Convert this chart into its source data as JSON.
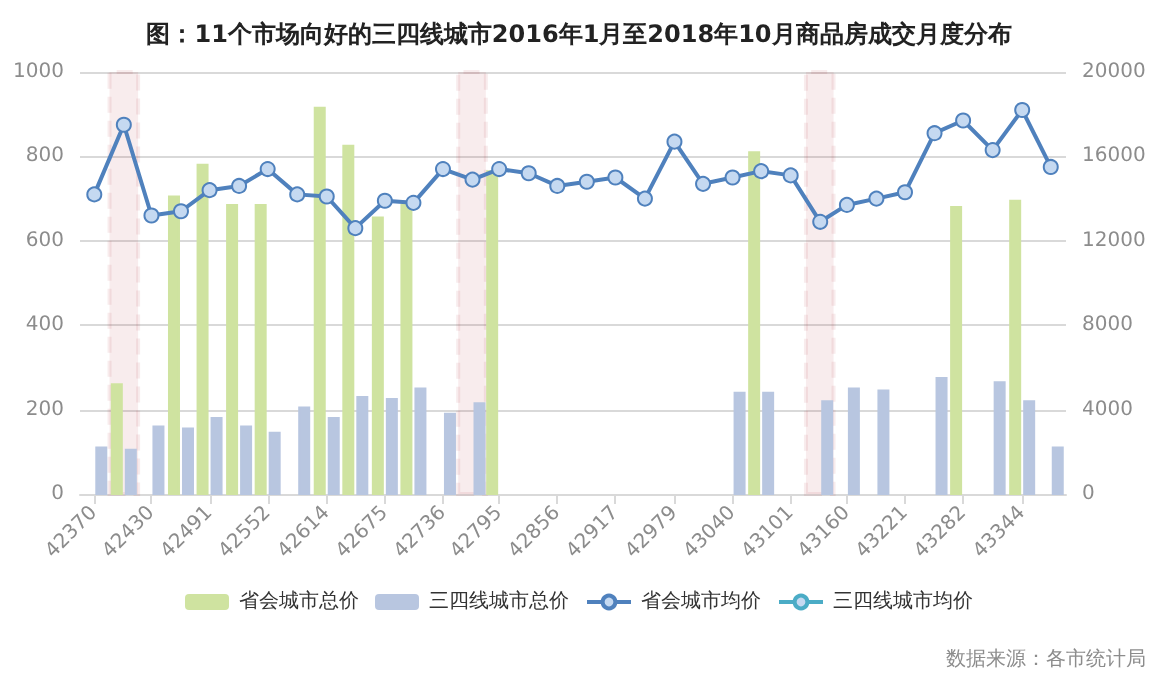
{
  "chart_data": {
    "type": "bar",
    "title": "图：11个市场向好的三四线城市2016年1月至2018年10月商品房成交月度分布",
    "x": [
      42370,
      42401,
      42430,
      42461,
      42491,
      42522,
      42552,
      42583,
      42614,
      42644,
      42675,
      42705,
      42736,
      42767,
      42795,
      42826,
      42856,
      42887,
      42917,
      42948,
      42979,
      43009,
      43040,
      43070,
      43101,
      43132,
      43160,
      43191,
      43221,
      43252,
      43282,
      43313,
      43344,
      43374
    ],
    "xlim": [
      42355,
      43390
    ],
    "xticks": [
      42370,
      42430,
      42491,
      42552,
      42614,
      42675,
      42736,
      42795,
      42856,
      42917,
      42979,
      43040,
      43101,
      43160,
      43221,
      43282,
      43344
    ],
    "ylim": [
      0,
      1000
    ],
    "yticks": [
      0,
      200,
      400,
      600,
      800,
      1000
    ],
    "y2lim": [
      0,
      20000
    ],
    "y2ticks": [
      0,
      4000,
      8000,
      12000,
      16000,
      20000
    ],
    "series": [
      {
        "name": "省会城市总价",
        "color": "#cfe3a0",
        "values": [
          null,
          260,
          null,
          705,
          780,
          685,
          685,
          null,
          915,
          825,
          655,
          685,
          null,
          null,
          765,
          null,
          null,
          null,
          null,
          null,
          null,
          null,
          null,
          810,
          null,
          null,
          null,
          null,
          null,
          null,
          680,
          null,
          695,
          null
        ]
      },
      {
        "name": "三四线城市总价",
        "color": "#b8c6e0",
        "values": [
          110,
          105,
          160,
          155,
          180,
          160,
          145,
          205,
          180,
          230,
          225,
          250,
          190,
          215,
          null,
          null,
          null,
          null,
          null,
          null,
          null,
          null,
          240,
          240,
          null,
          220,
          250,
          245,
          null,
          275,
          null,
          265,
          220,
          110
        ]
      },
      {
        "name": "省会城市均价",
        "type": "line",
        "axis": "y2",
        "color": "#4f81bd",
        "values": [
          14200,
          17500,
          13200,
          13400,
          14400,
          14600,
          15400,
          14200,
          14100,
          12600,
          13900,
          13800,
          15400,
          14900,
          15400,
          15200,
          14600,
          14800,
          15000,
          14000,
          16700,
          14700,
          15000,
          15300,
          15100,
          12900,
          13700,
          14000,
          14300,
          17100,
          17700,
          16300,
          18200,
          15500
        ]
      },
      {
        "name": "三四线城市均价",
        "type": "line",
        "axis": "y2",
        "color": "#4bacc6",
        "values": [
          null,
          null,
          null,
          null,
          null,
          null,
          null,
          null,
          null,
          null,
          null,
          null,
          null,
          null,
          null,
          null,
          null,
          null,
          null,
          null,
          null,
          null,
          null,
          null,
          null,
          null,
          null,
          null,
          null,
          null,
          null,
          null,
          null,
          null
        ]
      }
    ],
    "bands": [
      {
        "axis": "x",
        "from": 42386,
        "to": 42416,
        "color": "#a50f15"
      },
      {
        "axis": "x",
        "from": 42752,
        "to": 42781,
        "color": "#a50f15"
      },
      {
        "axis": "x",
        "from": 43117,
        "to": 43146,
        "color": "#a50f15"
      }
    ],
    "marker": "circle",
    "grid": "y",
    "legend": "bottom",
    "annotations": [
      "数据来源：各市统计局"
    ]
  }
}
